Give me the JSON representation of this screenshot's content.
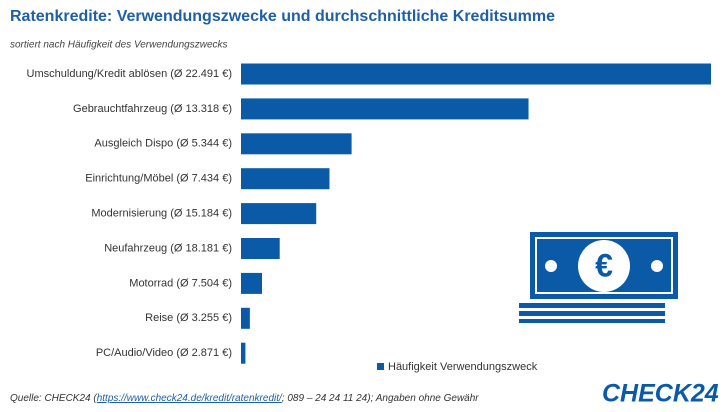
{
  "chart_data": {
    "type": "bar",
    "orientation": "horizontal",
    "title": "Ratenkredite: Verwendungszwecke und durchschnittliche Kreditsumme",
    "subtitle": "sortiert nach Häufigkeit des Verwendungszwecks",
    "categories": [
      "Umschuldung/Kredit ablösen (Ø 22.491 €)",
      "Gebrauchtfahrzeug (Ø 13.318 €)",
      "Ausgleich Dispo (Ø 5.344 €)",
      "Einrichtung/Möbel (Ø 7.434 €)",
      "Modernisierung (Ø 15.184 €)",
      "Neufahrzeug (Ø 18.181 €)",
      "Motorrad (Ø 7.504 €)",
      "Reise (Ø 3.255 €)",
      "PC/Audio/Video (Ø 2.871 €)"
    ],
    "series": [
      {
        "name": "Häufigkeit Verwendungszweck",
        "color": "#0a5aa8",
        "values": [
          42.5,
          26.0,
          10.0,
          8.0,
          6.8,
          3.5,
          1.9,
          0.8,
          0.4
        ]
      }
    ],
    "xlim": [
      0,
      42.5
    ]
  },
  "footer": {
    "before": "Quelle: CHECK24 (",
    "link": "https://www.check24.de/kredit/ratenkredit/",
    "after": "; 089 – 24 24 11 24); Angaben ohne Gewähr"
  },
  "logo": "CHECK24"
}
